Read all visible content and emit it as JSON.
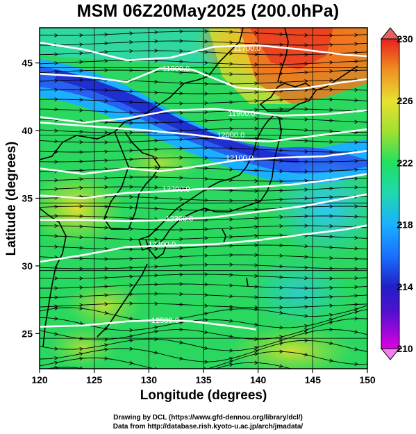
{
  "title": "MSM 06Z20May2025 (200.0hPa)",
  "map_data": {
    "x_axis": {
      "label": "Longitude (degrees)",
      "min": 120,
      "max": 150,
      "ticks": [
        120,
        125,
        130,
        135,
        140,
        145,
        150
      ]
    },
    "y_axis": {
      "label": "Latitude  (degrees)",
      "min": 22.4,
      "max": 47.6,
      "ticks": [
        25,
        30,
        35,
        40,
        45
      ]
    },
    "grid": true,
    "shaded_field": "temperature",
    "colorbar": {
      "min": 210,
      "max": 230,
      "ticks": [
        210,
        214,
        218,
        222,
        226,
        230
      ],
      "colors": [
        "#e000e0",
        "#2020c8",
        "#1aa0ff",
        "#20d8c0",
        "#20e060",
        "#a0e030",
        "#e8e030",
        "#f0a020",
        "#f05020",
        "#e82020"
      ]
    },
    "contours": [
      {
        "label": "11700.0",
        "points": [
          [
            120,
            46.5
          ],
          [
            124,
            46.0
          ],
          [
            128,
            45.2
          ],
          [
            132,
            45.4
          ],
          [
            136,
            46.2
          ],
          [
            140,
            46.3
          ],
          [
            144,
            46.0
          ],
          [
            148,
            45.6
          ],
          [
            150,
            45.5
          ]
        ],
        "label_at": [
          139,
          46.1
        ]
      },
      {
        "label": "11800.0",
        "points": [
          [
            120,
            44.2
          ],
          [
            124,
            44.0
          ],
          [
            128,
            43.6
          ],
          [
            131,
            44.6
          ],
          [
            134,
            44.5
          ],
          [
            138,
            43.2
          ],
          [
            141,
            43.0
          ],
          [
            144,
            43.1
          ],
          [
            148,
            43.6
          ],
          [
            150,
            43.8
          ]
        ],
        "label_at": [
          132.5,
          44.6
        ]
      },
      {
        "label": "11900.0",
        "points": [
          [
            120,
            41.0
          ],
          [
            124,
            40.6
          ],
          [
            128,
            40.9
          ],
          [
            132,
            41.5
          ],
          [
            136,
            41.6
          ],
          [
            139,
            41.4
          ],
          [
            142,
            41.1
          ],
          [
            146,
            41.2
          ],
          [
            150,
            41.5
          ]
        ],
        "label_at": [
          138.5,
          41.3
        ]
      },
      {
        "label": "12000.0",
        "points": [
          [
            120,
            40.6
          ],
          [
            125,
            40.3
          ],
          [
            130,
            40.0
          ],
          [
            134,
            39.7
          ],
          [
            138,
            39.3
          ],
          [
            141,
            39.2
          ],
          [
            145,
            39.6
          ],
          [
            150,
            40.1
          ]
        ],
        "label_at": [
          137.5,
          39.7
        ]
      },
      {
        "label": "12100.0",
        "points": [
          [
            120,
            37.2
          ],
          [
            124,
            36.8
          ],
          [
            128,
            37.2
          ],
          [
            131,
            37.0
          ],
          [
            134,
            37.3
          ],
          [
            138,
            37.8
          ],
          [
            142,
            38.0
          ],
          [
            146,
            38.1
          ],
          [
            150,
            38.5
          ]
        ],
        "label_at": [
          138.3,
          38.0
        ]
      },
      {
        "label": "12200.0",
        "points": [
          [
            120,
            35.2
          ],
          [
            124,
            35.0
          ],
          [
            128,
            35.4
          ],
          [
            131,
            35.5
          ],
          [
            135,
            35.7
          ],
          [
            139,
            35.8
          ],
          [
            143,
            36.0
          ],
          [
            147,
            36.4
          ],
          [
            150,
            36.8
          ]
        ],
        "label_at": [
          132.5,
          35.7
        ]
      },
      {
        "label": "12300.0",
        "points": [
          [
            120,
            33.4
          ],
          [
            124,
            33.4
          ],
          [
            128,
            33.3
          ],
          [
            132,
            33.4
          ],
          [
            136,
            33.6
          ],
          [
            140,
            34.0
          ],
          [
            144,
            34.4
          ],
          [
            148,
            35.0
          ],
          [
            150,
            35.3
          ]
        ],
        "label_at": [
          132.8,
          33.5
        ]
      },
      {
        "label": "12400.0",
        "points": [
          [
            120,
            30.3
          ],
          [
            124,
            30.8
          ],
          [
            128,
            31.4
          ],
          [
            132,
            31.5
          ],
          [
            136,
            31.6
          ],
          [
            140,
            31.9
          ],
          [
            144,
            32.3
          ],
          [
            148,
            32.7
          ],
          [
            150,
            33.0
          ]
        ],
        "label_at": [
          131.2,
          31.6
        ]
      },
      {
        "label": "12500.0",
        "points": [
          [
            120,
            25.5
          ],
          [
            124,
            25.6
          ],
          [
            128,
            25.9
          ],
          [
            131,
            26.0
          ],
          [
            134,
            25.9
          ],
          [
            137,
            25.6
          ],
          [
            139,
            25.4
          ],
          [
            139.8,
            25.3
          ]
        ],
        "label_at": [
          131.5,
          26.0
        ]
      }
    ],
    "streamlines": "wind vectors at 200 hPa, predominantly west-to-east"
  },
  "credit": {
    "line1": "Drawing by DCL (https://www.gfd-dennou.org/library/dcl/)",
    "line2": "Data from http://database.rish.kyoto-u.ac.jp/arch/jmadata/"
  }
}
